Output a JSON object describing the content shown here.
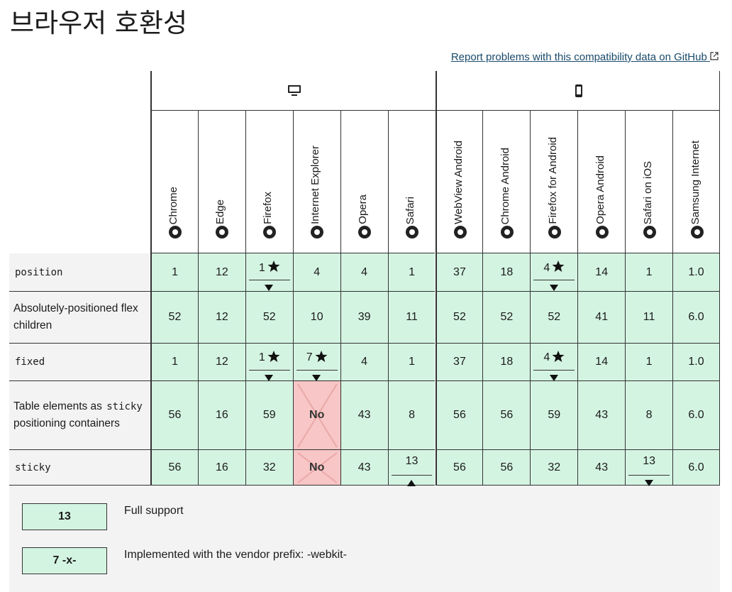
{
  "title": "브라우저 호환성",
  "report_link": "Report problems with this compatibility data on GitHub",
  "platforms": [
    {
      "browsers": [
        "Chrome",
        "Edge",
        "Firefox",
        "Internet Explorer",
        "Opera",
        "Safari"
      ]
    },
    {
      "browsers": [
        "WebView Android",
        "Chrome Android",
        "Firefox for Android",
        "Opera Android",
        "Safari on iOS",
        "Samsung Internet"
      ]
    }
  ],
  "rows": [
    {
      "feature": [
        {
          "text": "position",
          "code": true
        }
      ],
      "cells": [
        {
          "text": "1"
        },
        {
          "text": "12"
        },
        {
          "text": "1",
          "note": true,
          "toggle": "down"
        },
        {
          "text": "4"
        },
        {
          "text": "4"
        },
        {
          "text": "1"
        },
        {
          "text": "37"
        },
        {
          "text": "18"
        },
        {
          "text": "4",
          "note": true,
          "toggle": "down"
        },
        {
          "text": "14"
        },
        {
          "text": "1"
        },
        {
          "text": "1.0"
        }
      ]
    },
    {
      "feature": [
        {
          "text": "Absolutely-positioned flex children",
          "code": false
        }
      ],
      "cells": [
        {
          "text": "52"
        },
        {
          "text": "12"
        },
        {
          "text": "52"
        },
        {
          "text": "10"
        },
        {
          "text": "39"
        },
        {
          "text": "11"
        },
        {
          "text": "52"
        },
        {
          "text": "52"
        },
        {
          "text": "52"
        },
        {
          "text": "41"
        },
        {
          "text": "11"
        },
        {
          "text": "6.0"
        }
      ]
    },
    {
      "feature": [
        {
          "text": "fixed",
          "code": true
        }
      ],
      "cells": [
        {
          "text": "1"
        },
        {
          "text": "12"
        },
        {
          "text": "1",
          "note": true,
          "toggle": "down"
        },
        {
          "text": "7",
          "note": true,
          "toggle": "down"
        },
        {
          "text": "4"
        },
        {
          "text": "1"
        },
        {
          "text": "37"
        },
        {
          "text": "18"
        },
        {
          "text": "4",
          "note": true,
          "toggle": "down"
        },
        {
          "text": "14"
        },
        {
          "text": "1"
        },
        {
          "text": "1.0"
        }
      ]
    },
    {
      "feature": [
        {
          "text": "Table elements as",
          "code": false
        },
        {
          "text": "sticky",
          "code": true
        },
        {
          "text": "positioning containers",
          "code": false
        }
      ],
      "cells": [
        {
          "text": "56"
        },
        {
          "text": "16"
        },
        {
          "text": "59"
        },
        {
          "text": "No",
          "support": false
        },
        {
          "text": "43"
        },
        {
          "text": "8"
        },
        {
          "text": "56"
        },
        {
          "text": "56"
        },
        {
          "text": "59"
        },
        {
          "text": "43"
        },
        {
          "text": "8"
        },
        {
          "text": "6.0"
        }
      ]
    },
    {
      "feature": [
        {
          "text": "sticky",
          "code": true
        }
      ],
      "cells": [
        {
          "text": "56"
        },
        {
          "text": "16"
        },
        {
          "text": "32"
        },
        {
          "text": "No",
          "support": false
        },
        {
          "text": "43"
        },
        {
          "text": "13",
          "toggle": "up"
        },
        {
          "text": "56"
        },
        {
          "text": "56"
        },
        {
          "text": "32"
        },
        {
          "text": "43"
        },
        {
          "text": "13",
          "toggle": "down"
        },
        {
          "text": "6.0"
        }
      ]
    }
  ],
  "legend": [
    {
      "sample": "13",
      "label": "Full support"
    },
    {
      "sample": "7 -x-",
      "label": "Implemented with the vendor prefix: -webkit-"
    }
  ]
}
